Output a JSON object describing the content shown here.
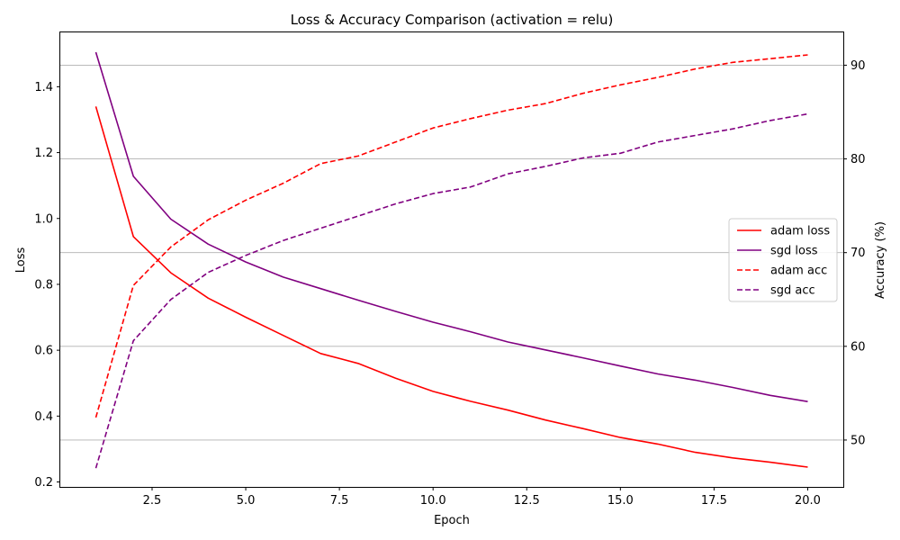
{
  "chart_data": {
    "type": "line",
    "title": "Loss & Accuracy Comparison (activation = relu)",
    "xlabel": "Epoch",
    "ylabel_left": "Loss",
    "ylabel_right": "Accuracy (%)",
    "xlim": [
      0.05,
      20.95
    ],
    "ylim_left": [
      0.185,
      1.565
    ],
    "ylim_right": [
      45,
      93.5
    ],
    "xticks": [
      2.5,
      5.0,
      7.5,
      10.0,
      12.5,
      15.0,
      17.5,
      20.0
    ],
    "xtick_labels": [
      "2.5",
      "5.0",
      "7.5",
      "10.0",
      "12.5",
      "15.0",
      "17.5",
      "20.0"
    ],
    "yticks_left": [
      0.2,
      0.4,
      0.6,
      0.8,
      1.0,
      1.2,
      1.4
    ],
    "ytick_labels_left": [
      "0.2",
      "0.4",
      "0.6",
      "0.8",
      "1.0",
      "1.2",
      "1.4"
    ],
    "yticks_right": [
      50,
      60,
      70,
      80,
      90
    ],
    "ytick_labels_right": [
      "50",
      "60",
      "70",
      "80",
      "90"
    ],
    "grid": "horizontal at right-axis ticks",
    "legend_position": "center-right",
    "x": [
      1,
      2,
      3,
      4,
      5,
      6,
      7,
      8,
      9,
      10,
      11,
      12,
      13,
      14,
      15,
      16,
      17,
      18,
      19,
      20
    ],
    "series": [
      {
        "name": "adam loss",
        "axis": "left",
        "color": "#ff0000",
        "dash": false,
        "values": [
          1.34,
          0.945,
          0.835,
          0.758,
          0.7,
          0.645,
          0.59,
          0.56,
          0.515,
          0.475,
          0.445,
          0.418,
          0.388,
          0.362,
          0.335,
          0.315,
          0.29,
          0.273,
          0.26,
          0.245
        ]
      },
      {
        "name": "sgd loss",
        "axis": "left",
        "color": "#800080",
        "dash": false,
        "values": [
          1.505,
          1.128,
          0.998,
          0.922,
          0.868,
          0.822,
          0.787,
          0.752,
          0.718,
          0.685,
          0.656,
          0.625,
          0.601,
          0.577,
          0.552,
          0.528,
          0.509,
          0.487,
          0.463,
          0.444
        ]
      },
      {
        "name": "adam acc",
        "axis": "right",
        "color": "#ff0000",
        "dash": true,
        "values": [
          52.4,
          66.5,
          70.6,
          73.5,
          75.6,
          77.4,
          79.5,
          80.3,
          81.8,
          83.3,
          84.3,
          85.2,
          85.9,
          87.0,
          87.9,
          88.7,
          89.6,
          90.3,
          90.7,
          91.1
        ]
      },
      {
        "name": "sgd acc",
        "axis": "right",
        "color": "#800080",
        "dash": true,
        "values": [
          47.0,
          60.6,
          65.0,
          67.9,
          69.7,
          71.3,
          72.6,
          73.9,
          75.2,
          76.3,
          77.0,
          78.4,
          79.2,
          80.1,
          80.6,
          81.8,
          82.5,
          83.2,
          84.1,
          84.8
        ]
      }
    ]
  }
}
